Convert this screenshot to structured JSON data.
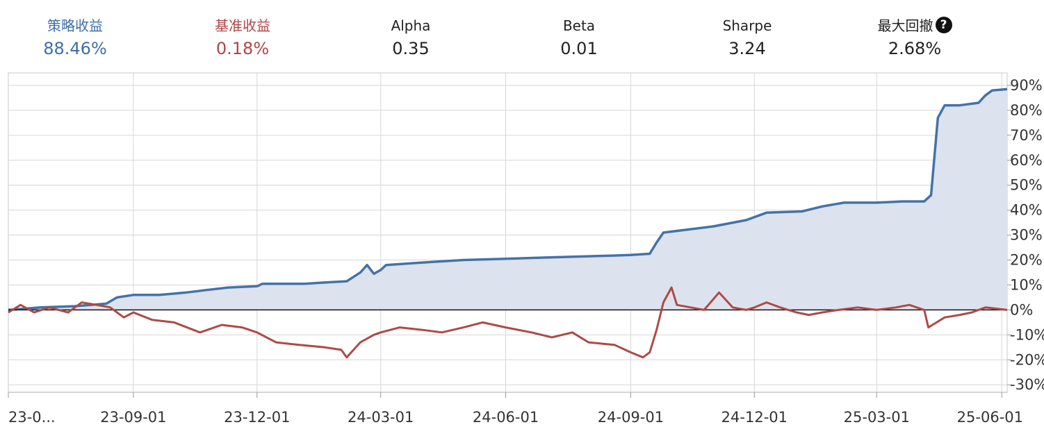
{
  "stats": {
    "strategy_return": {
      "label": "策略收益",
      "value": "88.46%",
      "color": "#3f6ea8"
    },
    "benchmark_return": {
      "label": "基准收益",
      "value": "0.18%",
      "color": "#b04545"
    },
    "alpha": {
      "label": "Alpha",
      "value": "0.35"
    },
    "beta": {
      "label": "Beta",
      "value": "0.01"
    },
    "sharpe": {
      "label": "Sharpe",
      "value": "3.24"
    },
    "max_drawdown": {
      "label": "最大回撤",
      "value": "2.68%",
      "icon": "help-icon"
    }
  },
  "chart_data": {
    "type": "area",
    "x_tick_labels": [
      "23-0...",
      "23-09-01",
      "23-12-01",
      "24-03-01",
      "24-06-01",
      "24-09-01",
      "24-12-01",
      "25-03-01",
      "25-06-01"
    ],
    "y_tick_labels": [
      "90%",
      "80%",
      "70%",
      "60%",
      "50%",
      "40%",
      "30%",
      "20%",
      "10%",
      "0%",
      "-10%",
      "-20%",
      "-30%"
    ],
    "ylim": [
      -33,
      95
    ],
    "xlim": [
      "2023-06-01",
      "2025-06-05"
    ],
    "grid": true,
    "zero_line": true,
    "series": [
      {
        "name": "策略收益",
        "color": "#4472a8",
        "fill": "#dde3ee",
        "points": [
          [
            "2023-06-01",
            0
          ],
          [
            "2023-06-25",
            1
          ],
          [
            "2023-07-20",
            1.5
          ],
          [
            "2023-08-12",
            2.5
          ],
          [
            "2023-08-20",
            5
          ],
          [
            "2023-09-01",
            6
          ],
          [
            "2023-09-20",
            6
          ],
          [
            "2023-10-10",
            7
          ],
          [
            "2023-10-25",
            8
          ],
          [
            "2023-11-10",
            9
          ],
          [
            "2023-12-01",
            9.5
          ],
          [
            "2023-12-05",
            10.5
          ],
          [
            "2024-01-05",
            10.5
          ],
          [
            "2024-01-20",
            11
          ],
          [
            "2024-02-05",
            11.5
          ],
          [
            "2024-02-15",
            15
          ],
          [
            "2024-02-20",
            18
          ],
          [
            "2024-02-25",
            14.5
          ],
          [
            "2024-03-01",
            16
          ],
          [
            "2024-03-05",
            18
          ],
          [
            "2024-04-01",
            19
          ],
          [
            "2024-05-01",
            20
          ],
          [
            "2024-06-01",
            20.5
          ],
          [
            "2024-07-01",
            21
          ],
          [
            "2024-08-01",
            21.5
          ],
          [
            "2024-09-01",
            22
          ],
          [
            "2024-09-15",
            22.5
          ],
          [
            "2024-09-20",
            27
          ],
          [
            "2024-09-25",
            31
          ],
          [
            "2024-10-10",
            32
          ],
          [
            "2024-11-01",
            33.5
          ],
          [
            "2024-11-25",
            36
          ],
          [
            "2024-12-10",
            39
          ],
          [
            "2025-01-05",
            39.5
          ],
          [
            "2025-01-20",
            41.5
          ],
          [
            "2025-02-05",
            43
          ],
          [
            "2025-03-01",
            43
          ],
          [
            "2025-03-20",
            43.5
          ],
          [
            "2025-04-05",
            43.5
          ],
          [
            "2025-04-10",
            46
          ],
          [
            "2025-04-15",
            77
          ],
          [
            "2025-04-20",
            82
          ],
          [
            "2025-05-01",
            82
          ],
          [
            "2025-05-15",
            83
          ],
          [
            "2025-05-20",
            86
          ],
          [
            "2025-05-25",
            88
          ],
          [
            "2025-06-05",
            88.5
          ]
        ]
      },
      {
        "name": "基准收益",
        "color": "#ad4a46",
        "points": [
          [
            "2023-06-01",
            -1
          ],
          [
            "2023-06-10",
            2
          ],
          [
            "2023-06-20",
            -1
          ],
          [
            "2023-07-01",
            1
          ],
          [
            "2023-07-15",
            -1
          ],
          [
            "2023-07-25",
            3
          ],
          [
            "2023-08-05",
            2
          ],
          [
            "2023-08-15",
            1
          ],
          [
            "2023-08-25",
            -3
          ],
          [
            "2023-09-01",
            -1
          ],
          [
            "2023-09-15",
            -4
          ],
          [
            "2023-10-01",
            -5
          ],
          [
            "2023-10-20",
            -9
          ],
          [
            "2023-11-05",
            -6
          ],
          [
            "2023-11-20",
            -7
          ],
          [
            "2023-12-01",
            -9
          ],
          [
            "2023-12-15",
            -13
          ],
          [
            "2024-01-01",
            -14
          ],
          [
            "2024-01-20",
            -15
          ],
          [
            "2024-02-01",
            -16
          ],
          [
            "2024-02-05",
            -19
          ],
          [
            "2024-02-15",
            -13
          ],
          [
            "2024-02-25",
            -10
          ],
          [
            "2024-03-01",
            -9
          ],
          [
            "2024-03-15",
            -7
          ],
          [
            "2024-04-01",
            -8
          ],
          [
            "2024-04-15",
            -9
          ],
          [
            "2024-05-01",
            -7
          ],
          [
            "2024-05-15",
            -5
          ],
          [
            "2024-06-01",
            -7
          ],
          [
            "2024-06-20",
            -9
          ],
          [
            "2024-07-05",
            -11
          ],
          [
            "2024-07-20",
            -9
          ],
          [
            "2024-08-01",
            -13
          ],
          [
            "2024-08-20",
            -14
          ],
          [
            "2024-09-01",
            -17
          ],
          [
            "2024-09-10",
            -19
          ],
          [
            "2024-09-15",
            -17
          ],
          [
            "2024-09-20",
            -8
          ],
          [
            "2024-09-25",
            3
          ],
          [
            "2024-10-01",
            9
          ],
          [
            "2024-10-05",
            2
          ],
          [
            "2024-10-15",
            1
          ],
          [
            "2024-10-25",
            0
          ],
          [
            "2024-11-05",
            7
          ],
          [
            "2024-11-15",
            1
          ],
          [
            "2024-11-25",
            0
          ],
          [
            "2024-12-01",
            1
          ],
          [
            "2024-12-10",
            3
          ],
          [
            "2024-12-20",
            1
          ],
          [
            "2025-01-01",
            -1
          ],
          [
            "2025-01-10",
            -2
          ],
          [
            "2025-01-20",
            -1
          ],
          [
            "2025-02-01",
            0
          ],
          [
            "2025-02-15",
            1
          ],
          [
            "2025-03-01",
            0
          ],
          [
            "2025-03-15",
            1
          ],
          [
            "2025-03-25",
            2
          ],
          [
            "2025-04-05",
            0
          ],
          [
            "2025-04-08",
            -7
          ],
          [
            "2025-04-20",
            -3
          ],
          [
            "2025-05-01",
            -2
          ],
          [
            "2025-05-10",
            -1
          ],
          [
            "2025-05-20",
            1
          ],
          [
            "2025-06-05",
            0
          ]
        ]
      }
    ]
  }
}
